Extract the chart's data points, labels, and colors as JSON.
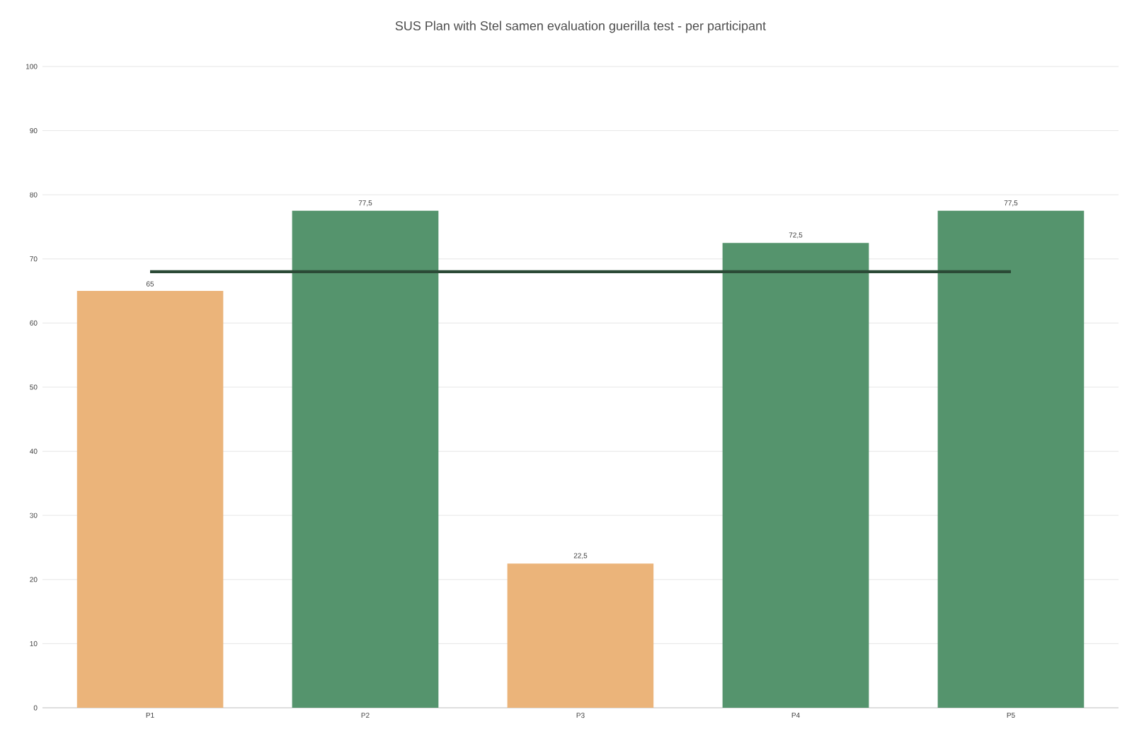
{
  "chart_data": {
    "type": "bar",
    "title": "SUS  Plan with Stel samen evaluation guerilla test - per participant",
    "categories": [
      "P1",
      "P2",
      "P3",
      "P4",
      "P5"
    ],
    "series": [
      {
        "values": [
          65,
          77.5,
          22.5,
          72.5,
          77.5
        ],
        "colors": [
          "#ebb47a",
          "#55946d",
          "#ebb47a",
          "#55946d",
          "#55946d"
        ],
        "value_labels": [
          "65",
          "77,5",
          "22,5",
          "72,5",
          "77,5"
        ]
      },
      {
        "type": "line",
        "values": [
          68,
          68,
          68,
          68,
          68
        ],
        "color": "#2b4a36"
      }
    ],
    "ylim": [
      0,
      100
    ],
    "yticks": [
      0,
      10,
      20,
      30,
      40,
      50,
      60,
      70,
      80,
      90,
      100
    ],
    "grid": "y"
  }
}
